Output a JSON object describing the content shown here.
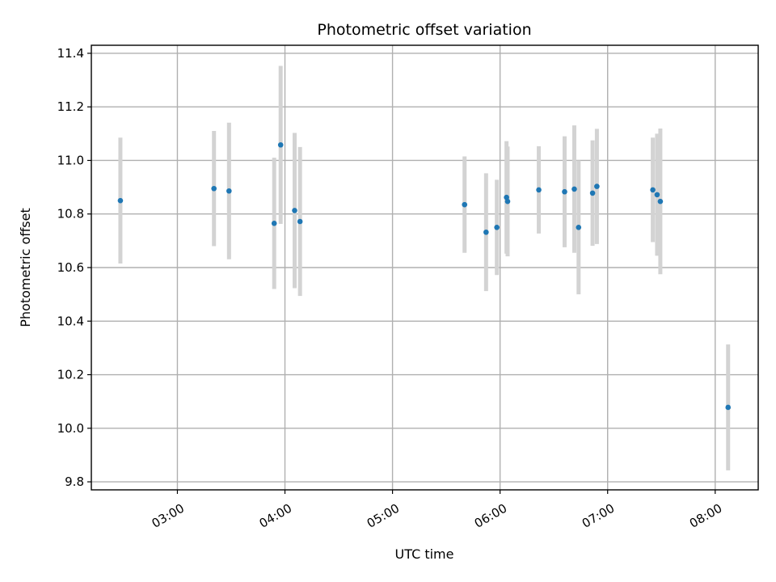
{
  "chart_data": {
    "type": "scatter",
    "title": "Photometric offset variation",
    "xlabel": "UTC time",
    "ylabel": "Photometric offset",
    "x_unit": "hours UTC",
    "xlim": [
      2.2,
      8.4
    ],
    "ylim": [
      9.77,
      11.43
    ],
    "grid": true,
    "x_ticks": [
      {
        "value": 3,
        "label": "03:00"
      },
      {
        "value": 4,
        "label": "04:00"
      },
      {
        "value": 5,
        "label": "05:00"
      },
      {
        "value": 6,
        "label": "06:00"
      },
      {
        "value": 7,
        "label": "07:00"
      },
      {
        "value": 8,
        "label": "08:00"
      }
    ],
    "y_ticks": [
      {
        "value": 9.8,
        "label": "9.8"
      },
      {
        "value": 10.0,
        "label": "10.0"
      },
      {
        "value": 10.2,
        "label": "10.2"
      },
      {
        "value": 10.4,
        "label": "10.4"
      },
      {
        "value": 10.6,
        "label": "10.6"
      },
      {
        "value": 10.8,
        "label": "10.8"
      },
      {
        "value": 11.0,
        "label": "11.0"
      },
      {
        "value": 11.2,
        "label": "11.2"
      },
      {
        "value": 11.4,
        "label": "11.4"
      }
    ],
    "series": [
      {
        "marker_color": "#1f77b4",
        "errorbar_color": "#d3d3d3",
        "points": [
          {
            "x": 2.47,
            "y": 10.85,
            "err": 0.235
          },
          {
            "x": 3.34,
            "y": 10.895,
            "err": 0.215
          },
          {
            "x": 3.48,
            "y": 10.886,
            "err": 0.255
          },
          {
            "x": 3.9,
            "y": 10.765,
            "err": 0.245
          },
          {
            "x": 3.96,
            "y": 11.058,
            "err": 0.295
          },
          {
            "x": 4.09,
            "y": 10.813,
            "err": 0.29
          },
          {
            "x": 4.14,
            "y": 10.772,
            "err": 0.278
          },
          {
            "x": 5.67,
            "y": 10.835,
            "err": 0.18
          },
          {
            "x": 5.87,
            "y": 10.732,
            "err": 0.22
          },
          {
            "x": 5.97,
            "y": 10.75,
            "err": 0.178
          },
          {
            "x": 6.06,
            "y": 10.862,
            "err": 0.21
          },
          {
            "x": 6.07,
            "y": 10.847,
            "err": 0.205
          },
          {
            "x": 6.36,
            "y": 10.89,
            "err": 0.163
          },
          {
            "x": 6.6,
            "y": 10.883,
            "err": 0.207
          },
          {
            "x": 6.69,
            "y": 10.893,
            "err": 0.238
          },
          {
            "x": 6.73,
            "y": 10.75,
            "err": 0.25
          },
          {
            "x": 6.86,
            "y": 10.878,
            "err": 0.197
          },
          {
            "x": 6.9,
            "y": 10.903,
            "err": 0.215
          },
          {
            "x": 7.42,
            "y": 10.89,
            "err": 0.195
          },
          {
            "x": 7.46,
            "y": 10.872,
            "err": 0.228
          },
          {
            "x": 7.49,
            "y": 10.847,
            "err": 0.272
          },
          {
            "x": 8.12,
            "y": 10.078,
            "err": 0.235
          }
        ]
      }
    ]
  }
}
